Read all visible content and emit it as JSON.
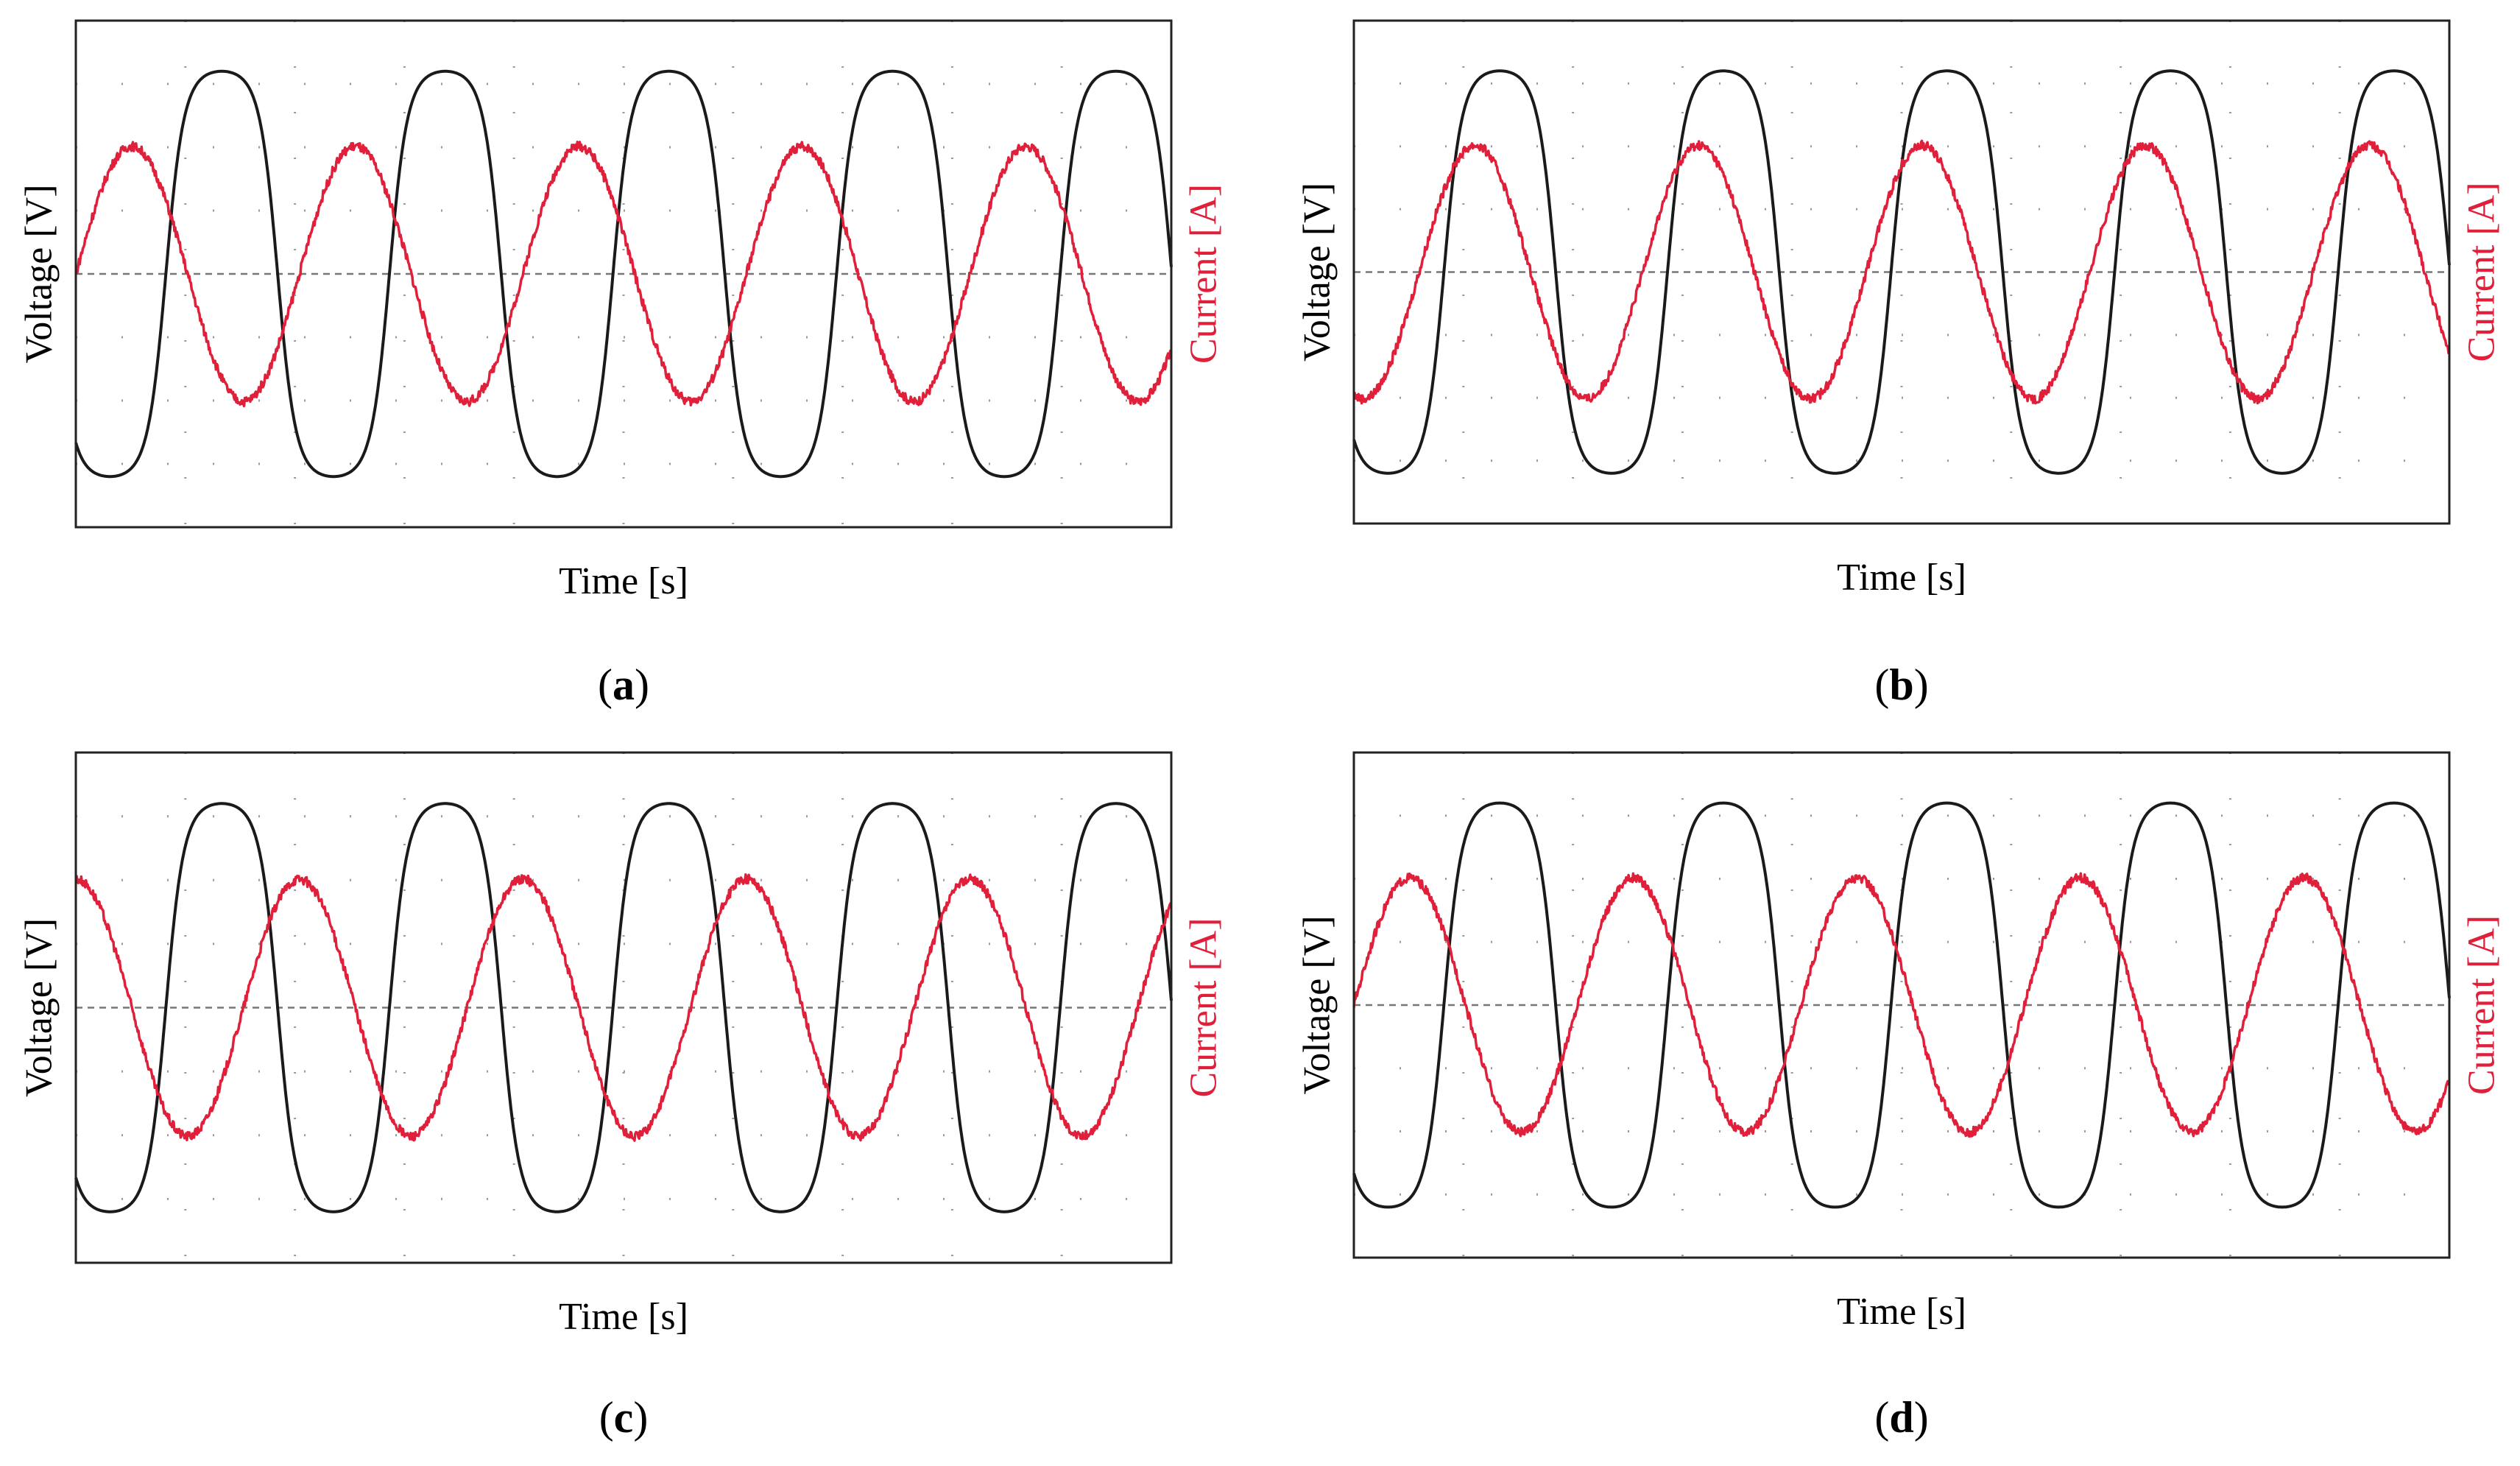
{
  "colors": {
    "voltage": "#1a1a1a",
    "current": "#e0203a",
    "frame": "#222222",
    "grid": "#9a9a9a",
    "zero_line": "#777777"
  },
  "chart_data": [
    {
      "type": "line",
      "panel": "a",
      "caption_letter": "a",
      "xlabel": "Time [s]",
      "ylabel_left": "Voltage [V]",
      "ylabel_right": "Current [A]",
      "xlim": [
        0,
        10
      ],
      "ylim": [
        -1.25,
        1.25
      ],
      "grid": "dotted",
      "zero_line": true,
      "series": [
        {
          "role": "voltage",
          "axis": "left",
          "color": "#1a1a1a",
          "amplitude": 1.0,
          "cycles": 4.9,
          "start_phase_deg": 215
        },
        {
          "role": "current",
          "axis": "right",
          "color": "#e0203a",
          "amplitude": 0.63,
          "cycles": 4.9,
          "start_phase_deg": 0
        }
      ]
    },
    {
      "type": "line",
      "panel": "b",
      "caption_letter": "b",
      "xlabel": "Time [s]",
      "ylabel_left": "Voltage [V]",
      "ylabel_right": "Current [A]",
      "xlim": [
        0,
        10
      ],
      "ylim": [
        -1.25,
        1.25
      ],
      "grid": "dotted",
      "zero_line": true,
      "series": [
        {
          "role": "voltage",
          "axis": "left",
          "color": "#1a1a1a",
          "amplitude": 1.0,
          "cycles": 4.9,
          "start_phase_deg": 215
        },
        {
          "role": "current",
          "axis": "right",
          "color": "#e0203a",
          "amplitude": 0.63,
          "cycles": 4.9,
          "start_phase_deg": 255
        }
      ]
    },
    {
      "type": "line",
      "panel": "c",
      "caption_letter": "c",
      "xlabel": "Time [s]",
      "ylabel_left": "Voltage [V]",
      "ylabel_right": "Current [A]",
      "xlim": [
        0,
        10
      ],
      "ylim": [
        -1.25,
        1.25
      ],
      "grid": "dotted",
      "zero_line": true,
      "series": [
        {
          "role": "voltage",
          "axis": "left",
          "color": "#1a1a1a",
          "amplitude": 1.0,
          "cycles": 4.9,
          "start_phase_deg": 215
        },
        {
          "role": "current",
          "axis": "right",
          "color": "#e0203a",
          "amplitude": 0.63,
          "cycles": 4.9,
          "start_phase_deg": 90
        }
      ]
    },
    {
      "type": "line",
      "panel": "d",
      "caption_letter": "d",
      "xlabel": "Time [s]",
      "ylabel_left": "Voltage [V]",
      "ylabel_right": "Current [A]",
      "xlim": [
        0,
        10
      ],
      "ylim": [
        -1.25,
        1.25
      ],
      "grid": "dotted",
      "zero_line": true,
      "series": [
        {
          "role": "voltage",
          "axis": "left",
          "color": "#1a1a1a",
          "amplitude": 1.0,
          "cycles": 4.9,
          "start_phase_deg": 215
        },
        {
          "role": "current",
          "axis": "right",
          "color": "#e0203a",
          "amplitude": 0.63,
          "cycles": 4.9,
          "start_phase_deg": 0
        }
      ]
    }
  ]
}
